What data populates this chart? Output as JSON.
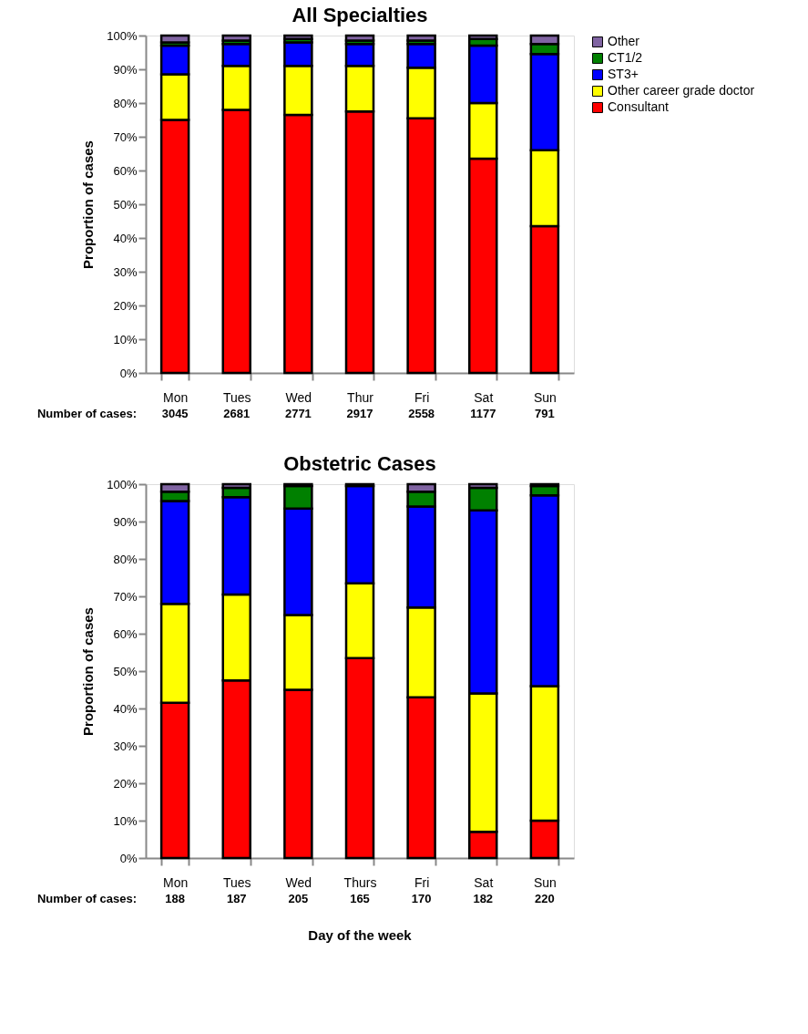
{
  "chart_data": [
    {
      "type": "bar",
      "stacked": true,
      "title": "All Specialties",
      "ylabel": "Proportion of cases",
      "legend": "right",
      "categories": [
        "Mon",
        "Tues",
        "Wed",
        "Thur",
        "Fri",
        "Sat",
        "Sun"
      ],
      "series": [
        {
          "name": "Consultant",
          "color": "#ff0000",
          "values": [
            75,
            78,
            76.5,
            77.5,
            75.5,
            63.5,
            43.5
          ]
        },
        {
          "name": "Other career grade doctor",
          "color": "#ffff00",
          "values": [
            13.5,
            13,
            14.5,
            13.5,
            15,
            16.5,
            22.5
          ]
        },
        {
          "name": "ST3+",
          "color": "#0000ff",
          "values": [
            8.5,
            6.5,
            7,
            6.5,
            7,
            17,
            28.5
          ]
        },
        {
          "name": "CT1/2",
          "color": "#008000",
          "values": [
            1,
            1,
            1,
            1,
            1,
            2,
            3
          ]
        },
        {
          "name": "Other",
          "color": "#8064a2",
          "values": [
            2,
            1.5,
            1,
            1.5,
            1.5,
            1,
            2.5
          ]
        }
      ],
      "ylim": [
        0,
        100
      ],
      "yticks": [
        {
          "value": 0,
          "label": "0%"
        },
        {
          "value": 10,
          "label": "10%"
        },
        {
          "value": 20,
          "label": "20%"
        },
        {
          "value": 30,
          "label": "30%"
        },
        {
          "value": 40,
          "label": "40%"
        },
        {
          "value": 50,
          "label": "50%"
        },
        {
          "value": 60,
          "label": "60%"
        },
        {
          "value": 70,
          "label": "70%"
        },
        {
          "value": 80,
          "label": "80%"
        },
        {
          "value": 90,
          "label": "90%"
        },
        {
          "value": 100,
          "label": "100%"
        }
      ],
      "annotations": [
        "Number of cases:",
        "3045",
        "2681",
        "2771",
        "2917",
        "2558",
        "1177",
        "791"
      ]
    },
    {
      "type": "bar",
      "stacked": true,
      "title": "Obstetric Cases",
      "ylabel": "Proportion of cases",
      "xlabel": "Day of the week",
      "legend": false,
      "categories": [
        "Mon",
        "Tues",
        "Wed",
        "Thurs",
        "Fri",
        "Sat",
        "Sun"
      ],
      "series": [
        {
          "name": "Consultant",
          "color": "#ff0000",
          "values": [
            41.5,
            47.5,
            45,
            53.5,
            43,
            7,
            10
          ]
        },
        {
          "name": "Other career grade doctor",
          "color": "#ffff00",
          "values": [
            26.5,
            23,
            20,
            20,
            24,
            37,
            36
          ]
        },
        {
          "name": "ST3+",
          "color": "#0000ff",
          "values": [
            27.5,
            26,
            28.5,
            26,
            27,
            49,
            51
          ]
        },
        {
          "name": "CT1/2",
          "color": "#008000",
          "values": [
            2.5,
            2.5,
            6,
            0,
            4,
            6,
            2.5
          ]
        },
        {
          "name": "Other",
          "color": "#8064a2",
          "values": [
            2,
            1,
            0.5,
            0.5,
            2,
            1,
            0.5
          ]
        }
      ],
      "ylim": [
        0,
        100
      ],
      "yticks": [
        {
          "value": 0,
          "label": "0%"
        },
        {
          "value": 10,
          "label": "10%"
        },
        {
          "value": 20,
          "label": "20%"
        },
        {
          "value": 30,
          "label": "30%"
        },
        {
          "value": 40,
          "label": "40%"
        },
        {
          "value": 50,
          "label": "50%"
        },
        {
          "value": 60,
          "label": "60%"
        },
        {
          "value": 70,
          "label": "70%"
        },
        {
          "value": 80,
          "label": "80%"
        },
        {
          "value": 90,
          "label": "90%"
        },
        {
          "value": 100,
          "label": "100%"
        }
      ],
      "annotations": [
        "Number of cases:",
        "188",
        "187",
        "205",
        "165",
        "170",
        "182",
        "220"
      ]
    }
  ]
}
